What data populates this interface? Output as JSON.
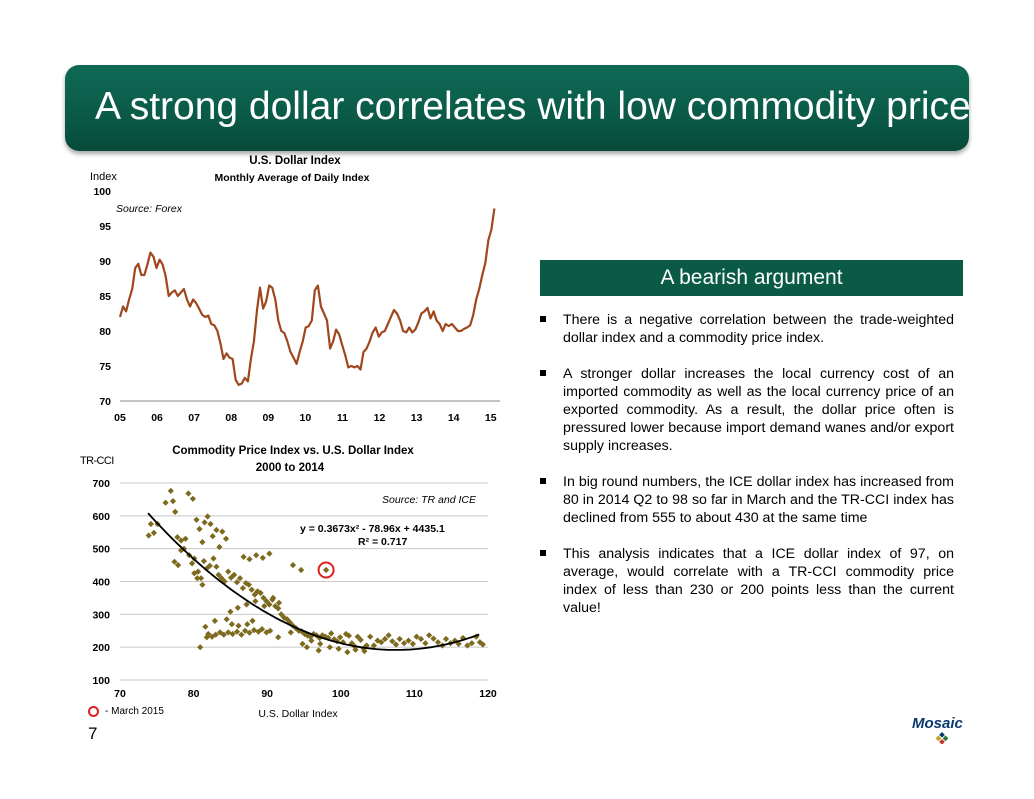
{
  "slide": {
    "title": "A strong dollar correlates with low commodity prices",
    "page_number": "7"
  },
  "side_panel": {
    "header": "A bearish argument",
    "bullets": [
      "There is a negative correlation between the trade-weighted dollar index and a commodity price index.",
      "A stronger dollar increases the local currency cost of an imported commodity as well as the local currency price of an exported commodity.  As a result, the dollar price often is pressured lower because import demand wanes and/or export supply increases.",
      "In big round numbers, the ICE dollar index has increased from 80 in 2014 Q2 to 98 so far in March and the TR-CCI index has declined from 555 to about 430 at the same time",
      "This analysis indicates that a ICE dollar index of 97, on average, would correlate with a TR-CCI commodity price index of less than 230 or 200 points less than the current value!"
    ]
  },
  "legend": {
    "march_label": "- March 2015"
  },
  "logo": {
    "text": "Mosaic"
  },
  "colors": {
    "title_bg": "#0b5a46",
    "line": "#a0461c",
    "scatter": "#7d6a1e",
    "trend": "#000000",
    "marker": "#e02020"
  },
  "chart_data": [
    {
      "type": "line",
      "title": "U.S. Dollar Index",
      "subtitle": "Monthly Average of Daily Index",
      "ylabel": "Index",
      "source": "Source: Forex",
      "xlim": [
        2005,
        2015.25
      ],
      "ylim": [
        70,
        100
      ],
      "x_ticks": [
        2005,
        2006,
        2007,
        2008,
        2009,
        2010,
        2011,
        2012,
        2013,
        2014,
        2015
      ],
      "x_tick_labels": [
        "05",
        "06",
        "07",
        "08",
        "09",
        "10",
        "11",
        "12",
        "13",
        "14",
        "15"
      ],
      "y_ticks": [
        70,
        75,
        80,
        85,
        90,
        95,
        100
      ],
      "grid": false,
      "start_year": 2005,
      "values": [
        82,
        83.5,
        82.8,
        84.5,
        86,
        89,
        89.6,
        88,
        88,
        89.5,
        91.2,
        90.6,
        89,
        90.2,
        89.5,
        87.8,
        85,
        85.5,
        85.8,
        85,
        85.5,
        86,
        84.5,
        83.5,
        84.5,
        84,
        83.2,
        82.3,
        82,
        82.2,
        81,
        80.8,
        80,
        78.2,
        76,
        76.8,
        76.2,
        76,
        73,
        72.3,
        72.5,
        73.3,
        72.8,
        76,
        78.5,
        83,
        86.2,
        83.2,
        84.2,
        86.5,
        86.2,
        84.5,
        81.5,
        80,
        79.7,
        78.5,
        77,
        76.2,
        75.3,
        77,
        78.5,
        80.5,
        80.7,
        81.5,
        85.8,
        86.5,
        83.5,
        82.5,
        81.5,
        77.5,
        78.5,
        80.2,
        79.5,
        78,
        76.5,
        74.8,
        75,
        74.8,
        75,
        74.5,
        77,
        77.5,
        78.5,
        79.8,
        80.5,
        79.2,
        79.8,
        80,
        81,
        82,
        83,
        82.5,
        81.5,
        80,
        79.8,
        80.5,
        79.8,
        80.2,
        81.2,
        82.5,
        82.8,
        83.3,
        81.8,
        82.8,
        81.5,
        81,
        80,
        81,
        80.7,
        81,
        80.5,
        80,
        80,
        80.3,
        80.5,
        80.8,
        82.2,
        84.5,
        86,
        88,
        89.7,
        93,
        94.5,
        97.5
      ]
    },
    {
      "type": "scatter",
      "title": "Commodity Price Index vs. U.S. Dollar Index",
      "subtitle": "2000 to 2014",
      "xlabel": "U.S. Dollar Index",
      "ylabel": "TR-CCI",
      "source": "Source: TR and ICE",
      "equation": "y = 0.3673x² - 78.96x + 4435.1",
      "r_squared": "R² = 0.717",
      "xlim": [
        70,
        120
      ],
      "ylim": [
        100,
        700
      ],
      "x_ticks": [
        70,
        80,
        90,
        100,
        110,
        120
      ],
      "y_ticks": [
        100,
        200,
        300,
        400,
        500,
        600,
        700
      ],
      "grid": true,
      "trend": {
        "a": 0.3673,
        "b": -78.96,
        "c": 4435.1,
        "x_range": [
          73.8,
          119
        ]
      },
      "highlight": {
        "x": 98,
        "y": 435,
        "label": "March 2015"
      },
      "points": [
        [
          73.9,
          540
        ],
        [
          74.2,
          575
        ],
        [
          74.6,
          548
        ],
        [
          75.1,
          575
        ],
        [
          76.2,
          640
        ],
        [
          76.9,
          676
        ],
        [
          77.2,
          645
        ],
        [
          77.5,
          612
        ],
        [
          77.8,
          535
        ],
        [
          78.3,
          525
        ],
        [
          78.7,
          500
        ],
        [
          79.3,
          668
        ],
        [
          79.9,
          652
        ],
        [
          80.4,
          588
        ],
        [
          80.8,
          560
        ],
        [
          81.2,
          520
        ],
        [
          81.5,
          580
        ],
        [
          81.9,
          598
        ],
        [
          82.3,
          575
        ],
        [
          82.6,
          538
        ],
        [
          83.1,
          557
        ],
        [
          83.5,
          505
        ],
        [
          83.9,
          552
        ],
        [
          84.4,
          530
        ],
        [
          77.4,
          460
        ],
        [
          77.9,
          450
        ],
        [
          78.3,
          495
        ],
        [
          78.9,
          530
        ],
        [
          79.4,
          480
        ],
        [
          79.8,
          455
        ],
        [
          80.1,
          470
        ],
        [
          80.6,
          430
        ],
        [
          81.0,
          410
        ],
        [
          81.4,
          462
        ],
        [
          81.8,
          440
        ],
        [
          82.2,
          448
        ],
        [
          82.7,
          470
        ],
        [
          83.1,
          445
        ],
        [
          83.4,
          420
        ],
        [
          83.8,
          410
        ],
        [
          84.2,
          400
        ],
        [
          84.7,
          430
        ],
        [
          85.1,
          412
        ],
        [
          85.5,
          420
        ],
        [
          85.9,
          398
        ],
        [
          86.3,
          410
        ],
        [
          86.7,
          380
        ],
        [
          87.1,
          395
        ],
        [
          87.5,
          390
        ],
        [
          87.9,
          375
        ],
        [
          88.3,
          360
        ],
        [
          88.7,
          370
        ],
        [
          89.1,
          365
        ],
        [
          89.5,
          350
        ],
        [
          89.9,
          340
        ],
        [
          90.3,
          330
        ],
        [
          90.7,
          345
        ],
        [
          91.1,
          325
        ],
        [
          91.5,
          318
        ],
        [
          91.9,
          300
        ],
        [
          92.3,
          290
        ],
        [
          92.7,
          285
        ],
        [
          93.1,
          275
        ],
        [
          93.5,
          265
        ],
        [
          93.9,
          258
        ],
        [
          94.3,
          250
        ],
        [
          94.7,
          248
        ],
        [
          95.1,
          240
        ],
        [
          95.5,
          235
        ],
        [
          95.9,
          232
        ],
        [
          96.3,
          240
        ],
        [
          96.7,
          236
        ],
        [
          97.1,
          228
        ],
        [
          97.5,
          236
        ],
        [
          97.9,
          232
        ],
        [
          98.3,
          228
        ],
        [
          98.7,
          242
        ],
        [
          99.1,
          224
        ],
        [
          99.5,
          218
        ],
        [
          99.9,
          230
        ],
        [
          100.3,
          215
        ],
        [
          100.7,
          240
        ],
        [
          101.1,
          235
        ],
        [
          101.5,
          212
        ],
        [
          101.9,
          202
        ],
        [
          102.3,
          232
        ],
        [
          102.7,
          222
        ],
        [
          103.1,
          196
        ],
        [
          103.5,
          205
        ],
        [
          104.0,
          232
        ],
        [
          104.5,
          205
        ],
        [
          105.0,
          220
        ],
        [
          105.5,
          215
        ],
        [
          106.0,
          225
        ],
        [
          106.5,
          236
        ],
        [
          107.0,
          218
        ],
        [
          107.5,
          208
        ],
        [
          108.0,
          225
        ],
        [
          108.6,
          212
        ],
        [
          109.2,
          220
        ],
        [
          109.8,
          210
        ],
        [
          110.3,
          232
        ],
        [
          110.9,
          225
        ],
        [
          111.5,
          212
        ],
        [
          112.0,
          236
        ],
        [
          112.6,
          226
        ],
        [
          113.2,
          215
        ],
        [
          113.8,
          205
        ],
        [
          114.3,
          225
        ],
        [
          114.9,
          212
        ],
        [
          115.5,
          220
        ],
        [
          116.0,
          210
        ],
        [
          116.6,
          228
        ],
        [
          117.2,
          205
        ],
        [
          117.8,
          212
        ],
        [
          118.4,
          232
        ],
        [
          118.9,
          215
        ],
        [
          119.3,
          208
        ],
        [
          80.1,
          425
        ],
        [
          80.5,
          410
        ],
        [
          81.2,
          390
        ],
        [
          81.8,
          230
        ],
        [
          82.0,
          240
        ],
        [
          82.5,
          232
        ],
        [
          83.0,
          238
        ],
        [
          83.6,
          245
        ],
        [
          84.1,
          238
        ],
        [
          84.7,
          245
        ],
        [
          85.3,
          240
        ],
        [
          85.9,
          247
        ],
        [
          86.5,
          238
        ],
        [
          87.0,
          250
        ],
        [
          87.6,
          244
        ],
        [
          88.2,
          252
        ],
        [
          88.8,
          247
        ],
        [
          89.3,
          255
        ],
        [
          89.9,
          245
        ],
        [
          90.4,
          250
        ],
        [
          85.0,
          308
        ],
        [
          86.0,
          320
        ],
        [
          87.2,
          330
        ],
        [
          88.4,
          340
        ],
        [
          89.6,
          325
        ],
        [
          90.8,
          350
        ],
        [
          91.6,
          335
        ],
        [
          86.8,
          475
        ],
        [
          87.6,
          468
        ],
        [
          88.5,
          480
        ],
        [
          89.4,
          472
        ],
        [
          90.3,
          485
        ],
        [
          93.5,
          450
        ],
        [
          94.6,
          435
        ],
        [
          96.0,
          220
        ],
        [
          97.2,
          210
        ],
        [
          98.5,
          200
        ],
        [
          99.7,
          195
        ],
        [
          100.9,
          185
        ],
        [
          102.0,
          192
        ],
        [
          103.2,
          188
        ],
        [
          97.0,
          190
        ],
        [
          95.4,
          200
        ],
        [
          94.8,
          210
        ],
        [
          93.2,
          245
        ],
        [
          91.5,
          230
        ],
        [
          80.9,
          200
        ],
        [
          81.6,
          262
        ],
        [
          82.9,
          280
        ],
        [
          84.5,
          285
        ],
        [
          85.2,
          270
        ],
        [
          86.1,
          265
        ],
        [
          87.3,
          270
        ],
        [
          88.0,
          280
        ]
      ]
    }
  ]
}
